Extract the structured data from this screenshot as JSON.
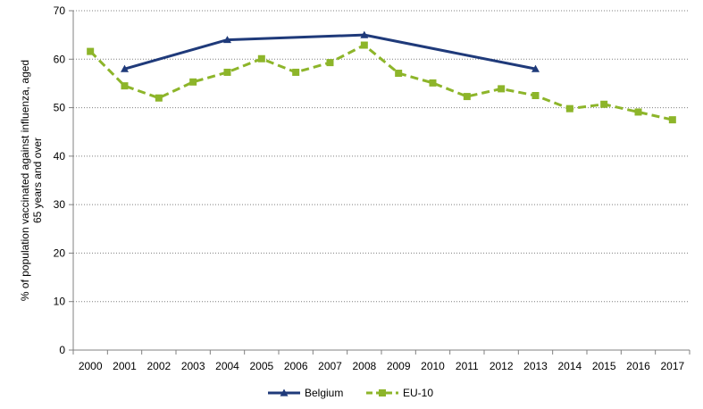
{
  "chart_data": {
    "type": "line",
    "title": "",
    "xlabel": "",
    "ylabel": "% of population vaccinated against influenza, aged 65 years  and over",
    "ylim": [
      0,
      70
    ],
    "yticks": [
      0,
      10,
      20,
      30,
      40,
      50,
      60,
      70
    ],
    "grid": "horizontal dotted",
    "legend_position": "bottom",
    "categories": [
      "2000",
      "2001",
      "2002",
      "2003",
      "2004",
      "2005",
      "2006",
      "2007",
      "2008",
      "2009",
      "2010",
      "2011",
      "2012",
      "2013",
      "2014",
      "2015",
      "2016",
      "2017"
    ],
    "series": [
      {
        "name": "Belgium",
        "color": "#1f3a7a",
        "marker": "triangle",
        "dash": "solid",
        "values": [
          null,
          58.0,
          null,
          null,
          64.0,
          null,
          null,
          null,
          65.0,
          null,
          null,
          null,
          null,
          58.0,
          null,
          null,
          null,
          null
        ]
      },
      {
        "name": "EU-10",
        "color": "#8db52a",
        "marker": "square",
        "dash": "dashed",
        "values": [
          61.6,
          54.5,
          52.0,
          55.3,
          57.3,
          60.1,
          57.3,
          59.3,
          62.9,
          57.1,
          55.1,
          52.3,
          53.9,
          52.5,
          49.8,
          50.7,
          49.1,
          47.5
        ]
      }
    ]
  }
}
